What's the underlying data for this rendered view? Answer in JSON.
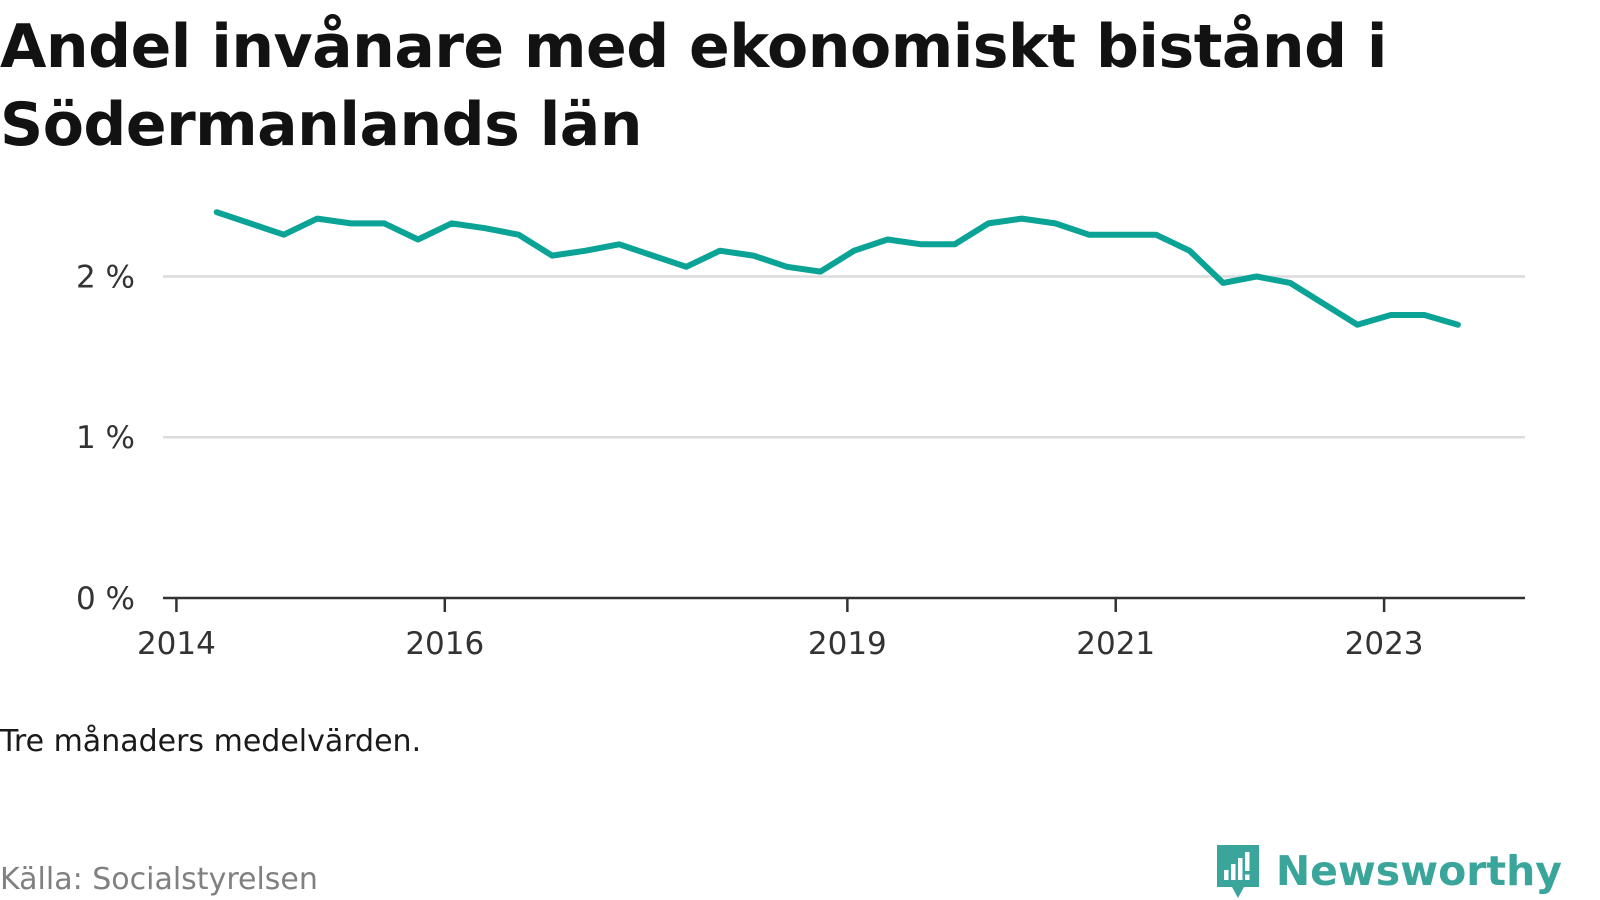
{
  "title": "Andel invånare med ekonomiskt bistånd i Södermanlands län",
  "note": "Tre månaders medelvärden.",
  "source": "Källa: Socialstyrelsen",
  "brand": "Newsworthy",
  "colors": {
    "line": "#0aa396",
    "grid": "#dcdcdc",
    "axis": "#333333",
    "brand": "#3aa59a"
  },
  "chart_data": {
    "type": "line",
    "x_unit": "year",
    "ylim": [
      0,
      2.6
    ],
    "yticks": [
      {
        "value": 0,
        "label": "0 %"
      },
      {
        "value": 1,
        "label": "1 %"
      },
      {
        "value": 2,
        "label": "2 %"
      }
    ],
    "xlim": [
      2013.9,
      2024.05
    ],
    "xticks": [
      {
        "value": 2014,
        "label": "2014"
      },
      {
        "value": 2016,
        "label": "2016"
      },
      {
        "value": 2019,
        "label": "2019"
      },
      {
        "value": 2021,
        "label": "2021"
      },
      {
        "value": 2023,
        "label": "2023"
      }
    ],
    "grid": true,
    "series": [
      {
        "x": [
          2014.3,
          2014.55,
          2014.8,
          2015.05,
          2015.3,
          2015.55,
          2015.8,
          2016.05,
          2016.3,
          2016.55,
          2016.8,
          2017.05,
          2017.3,
          2017.55,
          2017.8,
          2018.05,
          2018.3,
          2018.55,
          2018.8,
          2019.05,
          2019.3,
          2019.55,
          2019.8,
          2020.05,
          2020.3,
          2020.55,
          2020.8,
          2021.05,
          2021.3,
          2021.55,
          2021.8,
          2022.05,
          2022.3,
          2022.55,
          2022.8,
          2023.05,
          2023.3,
          2023.55
        ],
        "y": [
          2.4,
          2.33,
          2.26,
          2.36,
          2.33,
          2.33,
          2.23,
          2.33,
          2.3,
          2.26,
          2.13,
          2.16,
          2.2,
          2.13,
          2.06,
          2.16,
          2.13,
          2.06,
          2.03,
          2.16,
          2.23,
          2.2,
          2.2,
          2.33,
          2.36,
          2.33,
          2.26,
          2.26,
          2.26,
          2.16,
          1.96,
          2.0,
          1.96,
          1.83,
          1.7,
          1.76,
          1.76,
          1.7
        ]
      }
    ]
  }
}
